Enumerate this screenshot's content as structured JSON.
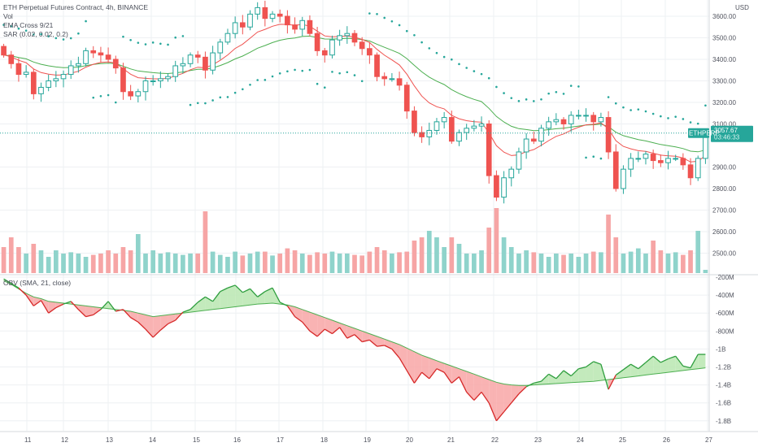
{
  "legend": {
    "main_title": "ETH Perpetual Futures Contract, 4h, BINANCE",
    "vol": "Vol",
    "ema": "EMA Cross 9/21",
    "sar": "SAR (0.02, 0.02, 0.2)",
    "obv": "OBV (SMA, 21, close)"
  },
  "colors": {
    "up": "#26a69a",
    "down": "#ef5350",
    "vol_up": "#8fd3cb",
    "vol_down": "#f6a5a5",
    "ema_fast": "#ef5350",
    "ema_slow": "#4caf50",
    "obv_line": "#d62828",
    "obv_sma": "#4caf50",
    "fill_red": "#f8a6a6",
    "fill_green": "#b8e6b0",
    "tag_bg": "#26a69a"
  },
  "price_axis": {
    "currency": "USD",
    "ticks": [
      "3600.00",
      "3500.00",
      "3400.00",
      "3300.00",
      "3200.00",
      "3100.00",
      "2900.00",
      "2800.00",
      "2700.00",
      "2600.00",
      "2500.00"
    ]
  },
  "obv_axis": {
    "ticks": [
      "-200M",
      "-400M",
      "-600M",
      "-800M",
      "-1B",
      "-1.2B",
      "-1.4B",
      "-1.6B",
      "-1.8B"
    ]
  },
  "x_axis": {
    "ticks": [
      "11",
      "12",
      "13",
      "14",
      "15",
      "16",
      "17",
      "18",
      "19",
      "20",
      "21",
      "22",
      "23",
      "24",
      "25",
      "26",
      "27"
    ]
  },
  "last_price": {
    "symbol": "ETHPERP",
    "price": "3057.67",
    "countdown": "03:46:33"
  },
  "chart_data": {
    "type": "candlestick",
    "title": "ETH Perpetual Futures Contract, 4h, BINANCE",
    "close": [
      3420,
      3380,
      3330,
      3340,
      3240,
      3270,
      3300,
      3310,
      3330,
      3370,
      3380,
      3440,
      3430,
      3420,
      3400,
      3360,
      3250,
      3230,
      3250,
      3300,
      3300,
      3310,
      3320,
      3370,
      3380,
      3420,
      3410,
      3350,
      3430,
      3480,
      3520,
      3570,
      3550,
      3610,
      3640,
      3590,
      3610,
      3600,
      3560,
      3540,
      3580,
      3520,
      3440,
      3420,
      3490,
      3510,
      3520,
      3480,
      3450,
      3420,
      3320,
      3310,
      3310,
      3280,
      3160,
      3060,
      3040,
      3070,
      3110,
      3130,
      3020,
      3060,
      3080,
      3090,
      3100,
      2860,
      2760,
      2850,
      2890,
      2970,
      3030,
      3020,
      3080,
      3110,
      3120,
      3100,
      3140,
      3140,
      3140,
      3110,
      3130,
      2970,
      2800,
      2890,
      2940,
      2940,
      2960,
      2930,
      2920,
      2940,
      2940,
      2910,
      2850,
      2940,
      3057.67
    ],
    "sma_visible_from": 26,
    "volume_unit": "relative",
    "series": [
      {
        "name": "EMA 9",
        "type": "line"
      },
      {
        "name": "EMA 21",
        "type": "line"
      },
      {
        "name": "SAR",
        "type": "dots"
      },
      {
        "name": "OBV",
        "type": "line"
      },
      {
        "name": "OBV SMA 21",
        "type": "line"
      }
    ],
    "volume": [
      0.4,
      0.55,
      0.4,
      0.3,
      0.45,
      0.35,
      0.25,
      0.35,
      0.3,
      0.32,
      0.3,
      0.25,
      0.28,
      0.3,
      0.35,
      0.3,
      0.4,
      0.35,
      0.6,
      0.3,
      0.35,
      0.3,
      0.32,
      0.3,
      0.28,
      0.3,
      0.3,
      0.95,
      0.33,
      0.28,
      0.25,
      0.33,
      0.27,
      0.3,
      0.33,
      0.33,
      0.27,
      0.3,
      0.38,
      0.35,
      0.3,
      0.28,
      0.32,
      0.3,
      0.33,
      0.3,
      0.3,
      0.28,
      0.27,
      0.33,
      0.4,
      0.35,
      0.3,
      0.32,
      0.33,
      0.5,
      0.55,
      0.65,
      0.55,
      0.4,
      0.55,
      0.45,
      0.3,
      0.3,
      0.35,
      0.7,
      1.0,
      0.55,
      0.4,
      0.3,
      0.35,
      0.32,
      0.3,
      0.25,
      0.3,
      0.28,
      0.3,
      0.25,
      0.3,
      0.33,
      0.32,
      0.9,
      0.55,
      0.3,
      0.33,
      0.38,
      0.3,
      0.5,
      0.35,
      0.3,
      0.32,
      0.28,
      0.35,
      0.65,
      0.05
    ],
    "obv_m": [
      -220,
      -270,
      -320,
      -400,
      -520,
      -460,
      -600,
      -540,
      -500,
      -470,
      -560,
      -640,
      -620,
      -560,
      -470,
      -580,
      -560,
      -650,
      -700,
      -780,
      -870,
      -790,
      -720,
      -680,
      -590,
      -560,
      -480,
      -420,
      -470,
      -360,
      -320,
      -290,
      -370,
      -330,
      -420,
      -360,
      -320,
      -480,
      -520,
      -640,
      -700,
      -800,
      -860,
      -780,
      -830,
      -760,
      -880,
      -840,
      -920,
      -900,
      -970,
      -960,
      -1000,
      -1100,
      -1240,
      -1380,
      -1260,
      -1330,
      -1220,
      -1260,
      -1380,
      -1310,
      -1480,
      -1570,
      -1480,
      -1600,
      -1800,
      -1700,
      -1600,
      -1500,
      -1420,
      -1380,
      -1360,
      -1280,
      -1330,
      -1240,
      -1300,
      -1220,
      -1200,
      -1140,
      -1170,
      -1450,
      -1290,
      -1230,
      -1170,
      -1220,
      -1150,
      -1080,
      -1150,
      -1110,
      -1080,
      -1190,
      -1210,
      -1060,
      -1060
    ],
    "obv_sma_m": [
      -240,
      -280,
      -330,
      -380,
      -420,
      -440,
      -470,
      -480,
      -490,
      -500,
      -510,
      -520,
      -530,
      -540,
      -550,
      -560,
      -570,
      -580,
      -600,
      -620,
      -640,
      -630,
      -620,
      -610,
      -600,
      -590,
      -580,
      -570,
      -560,
      -550,
      -540,
      -530,
      -520,
      -510,
      -500,
      -495,
      -490,
      -500,
      -510,
      -530,
      -560,
      -590,
      -620,
      -650,
      -680,
      -710,
      -740,
      -770,
      -800,
      -830,
      -860,
      -890,
      -920,
      -950,
      -990,
      -1030,
      -1070,
      -1100,
      -1130,
      -1160,
      -1190,
      -1220,
      -1250,
      -1280,
      -1310,
      -1340,
      -1370,
      -1390,
      -1400,
      -1405,
      -1405,
      -1400,
      -1395,
      -1390,
      -1385,
      -1380,
      -1375,
      -1370,
      -1365,
      -1360,
      -1350,
      -1340,
      -1330,
      -1320,
      -1310,
      -1300,
      -1290,
      -1280,
      -1270,
      -1260,
      -1250,
      -1240,
      -1230,
      -1220,
      -1210
    ]
  }
}
